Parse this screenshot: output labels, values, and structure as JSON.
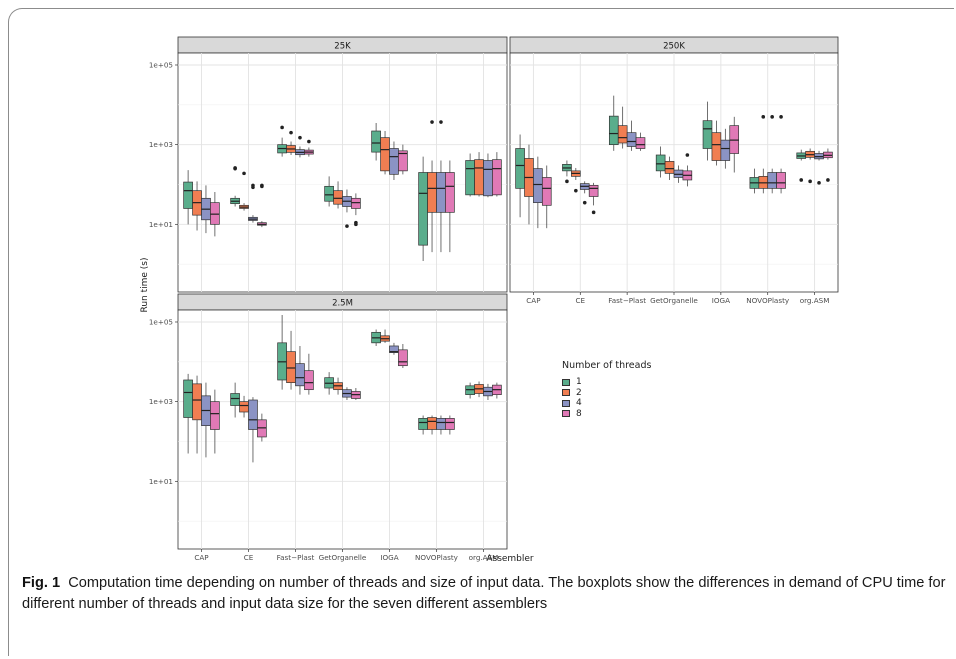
{
  "caption": {
    "label": "Fig. 1",
    "text": "Computation time depending on number of threads and size of input data. The boxplots show the differences in demand of CPU time for different number of threads and input data size for the seven different assemblers"
  },
  "chart_data": {
    "type": "boxplot",
    "xlabel": "Assembler",
    "ylabel": "Run time (s)",
    "yscale": "log10",
    "ylim": [
      0.2,
      200000
    ],
    "yticks": [
      "1e+01",
      "1e+03",
      "1e+05"
    ],
    "ytick_values": [
      10,
      1000,
      100000
    ],
    "grid": true,
    "legend": {
      "title": "Number of threads",
      "placement": "right",
      "entries": [
        "1",
        "2",
        "4",
        "8"
      ],
      "colors": [
        "#5aad8c",
        "#f07e52",
        "#8b93c4",
        "#e079b6"
      ]
    },
    "categories": [
      "CAP",
      "CE",
      "Fast−Plast",
      "GetOrganelle",
      "IOGA",
      "NOVOPlasty",
      "org.ASM"
    ],
    "panels": [
      {
        "title": "25K",
        "groups": {
          "CAP": [
            {
              "min": 10,
              "q1": 25,
              "median": 70,
              "q3": 115,
              "max": 230
            },
            {
              "min": 7,
              "q1": 17,
              "median": 35,
              "q3": 70,
              "max": 120
            },
            {
              "min": 6,
              "q1": 13,
              "median": 24,
              "q3": 45,
              "max": 95
            },
            {
              "min": 5,
              "q1": 10,
              "median": 18,
              "q3": 35,
              "max": 65
            }
          ],
          "CE": [
            {
              "min": 28,
              "q1": 33,
              "median": 38,
              "q3": 45,
              "max": 52,
              "outliers": [
                260,
                250
              ]
            },
            {
              "min": 22,
              "q1": 25,
              "median": 27,
              "q3": 30,
              "max": 34,
              "outliers": [
                190
              ]
            },
            {
              "min": 11,
              "q1": 12.5,
              "median": 13.5,
              "q3": 15,
              "max": 17,
              "outliers": [
                95,
                85
              ]
            },
            {
              "min": 8.5,
              "q1": 9.5,
              "median": 10,
              "q3": 11,
              "max": 12,
              "outliers": [
                95,
                90
              ]
            }
          ],
          "Fast−Plast": [
            {
              "min": 500,
              "q1": 620,
              "median": 800,
              "q3": 1000,
              "max": 1500,
              "outliers": [
                2700
              ]
            },
            {
              "min": 550,
              "q1": 640,
              "median": 780,
              "q3": 950,
              "max": 1200,
              "outliers": [
                2000
              ]
            },
            {
              "min": 480,
              "q1": 560,
              "median": 640,
              "q3": 750,
              "max": 900,
              "outliers": [
                1500
              ]
            },
            {
              "min": 500,
              "q1": 580,
              "median": 650,
              "q3": 730,
              "max": 850,
              "outliers": [
                1200
              ]
            }
          ],
          "GetOrganelle": [
            {
              "min": 28,
              "q1": 38,
              "median": 55,
              "q3": 90,
              "max": 160
            },
            {
              "min": 25,
              "q1": 32,
              "median": 45,
              "q3": 70,
              "max": 120
            },
            {
              "min": 20,
              "q1": 28,
              "median": 38,
              "q3": 50,
              "max": 75,
              "outliers": [
                9
              ]
            },
            {
              "min": 17,
              "q1": 25,
              "median": 35,
              "q3": 45,
              "max": 60,
              "outliers": [
                11,
                10
              ]
            }
          ],
          "IOGA": [
            {
              "min": 400,
              "q1": 650,
              "median": 1100,
              "q3": 2200,
              "max": 3500
            },
            {
              "min": 180,
              "q1": 220,
              "median": 750,
              "q3": 1500,
              "max": 2200
            },
            {
              "min": 130,
              "q1": 180,
              "median": 500,
              "q3": 800,
              "max": 1200
            },
            {
              "min": 180,
              "q1": 220,
              "median": 600,
              "q3": 700,
              "max": 1000
            }
          ],
          "NOVOPlasty": [
            {
              "min": 1.2,
              "q1": 3,
              "median": 60,
              "q3": 200,
              "max": 500
            },
            {
              "min": 2,
              "q1": 20,
              "median": 80,
              "q3": 200,
              "max": 400,
              "outliers": [
                3700
              ]
            },
            {
              "min": 2,
              "q1": 20,
              "median": 80,
              "q3": 200,
              "max": 400,
              "outliers": [
                3700
              ]
            },
            {
              "min": 2,
              "q1": 20,
              "median": 90,
              "q3": 200,
              "max": 400
            }
          ],
          "org.ASM": [
            {
              "min": 50,
              "q1": 55,
              "median": 250,
              "q3": 400,
              "max": 600
            },
            {
              "min": 50,
              "q1": 55,
              "median": 260,
              "q3": 420,
              "max": 650
            },
            {
              "min": 48,
              "q1": 52,
              "median": 240,
              "q3": 400,
              "max": 600
            },
            {
              "min": 50,
              "q1": 55,
              "median": 250,
              "q3": 420,
              "max": 650
            }
          ]
        }
      },
      {
        "title": "250K",
        "groups": {
          "CAP": [
            {
              "min": 15,
              "q1": 80,
              "median": 300,
              "q3": 800,
              "max": 1800
            },
            {
              "min": 10,
              "q1": 50,
              "median": 150,
              "q3": 450,
              "max": 1000
            },
            {
              "min": 8,
              "q1": 35,
              "median": 100,
              "q3": 250,
              "max": 500
            },
            {
              "min": 8,
              "q1": 30,
              "median": 80,
              "q3": 150,
              "max": 300
            }
          ],
          "CE": [
            {
              "min": 160,
              "q1": 220,
              "median": 260,
              "q3": 320,
              "max": 400,
              "outliers": [
                120
              ]
            },
            {
              "min": 130,
              "q1": 160,
              "median": 190,
              "q3": 220,
              "max": 260,
              "outliers": [
                70
              ]
            },
            {
              "min": 60,
              "q1": 75,
              "median": 90,
              "q3": 105,
              "max": 120,
              "outliers": [
                35
              ]
            },
            {
              "min": 30,
              "q1": 50,
              "median": 80,
              "q3": 95,
              "max": 110,
              "outliers": [
                20
              ]
            }
          ],
          "Fast−Plast": [
            {
              "min": 700,
              "q1": 1000,
              "median": 1900,
              "q3": 5200,
              "max": 17000
            },
            {
              "min": 800,
              "q1": 1100,
              "median": 1500,
              "q3": 3000,
              "max": 9000
            },
            {
              "min": 700,
              "q1": 900,
              "median": 1200,
              "q3": 2000,
              "max": 4000
            },
            {
              "min": 700,
              "q1": 800,
              "median": 1000,
              "q3": 1500,
              "max": 2000
            }
          ],
          "GetOrganelle": [
            {
              "min": 150,
              "q1": 220,
              "median": 330,
              "q3": 550,
              "max": 900
            },
            {
              "min": 130,
              "q1": 190,
              "median": 250,
              "q3": 380,
              "max": 500
            },
            {
              "min": 110,
              "q1": 150,
              "median": 180,
              "q3": 230,
              "max": 300
            },
            {
              "min": 90,
              "q1": 130,
              "median": 170,
              "q3": 220,
              "max": 300,
              "outliers": [
                550
              ]
            }
          ],
          "IOGA": [
            {
              "min": 400,
              "q1": 800,
              "median": 2500,
              "q3": 4000,
              "max": 12000
            },
            {
              "min": 300,
              "q1": 400,
              "median": 1000,
              "q3": 2000,
              "max": 4000
            },
            {
              "min": 250,
              "q1": 400,
              "median": 800,
              "q3": 1300,
              "max": 2500
            },
            {
              "min": 200,
              "q1": 600,
              "median": 1300,
              "q3": 3000,
              "max": 5000
            }
          ],
          "NOVOPlasty": [
            {
              "min": 60,
              "q1": 80,
              "median": 110,
              "q3": 150,
              "max": 250
            },
            {
              "min": 60,
              "q1": 80,
              "median": 110,
              "q3": 160,
              "max": 250,
              "outliers": [
                5000
              ]
            },
            {
              "min": 60,
              "q1": 80,
              "median": 110,
              "q3": 200,
              "max": 250,
              "outliers": [
                5000
              ]
            },
            {
              "min": 60,
              "q1": 80,
              "median": 110,
              "q3": 200,
              "max": 250,
              "outliers": [
                5000
              ]
            }
          ],
          "org.ASM": [
            {
              "min": 400,
              "q1": 450,
              "median": 520,
              "q3": 620,
              "max": 750,
              "outliers": [
                130
              ]
            },
            {
              "min": 420,
              "q1": 480,
              "median": 560,
              "q3": 680,
              "max": 800,
              "outliers": [
                120
              ]
            },
            {
              "min": 400,
              "q1": 440,
              "median": 500,
              "q3": 600,
              "max": 700,
              "outliers": [
                110
              ]
            },
            {
              "min": 420,
              "q1": 470,
              "median": 540,
              "q3": 650,
              "max": 800,
              "outliers": [
                130
              ]
            }
          ]
        }
      },
      {
        "title": "2.5M",
        "groups": {
          "CAP": [
            {
              "min": 50,
              "q1": 400,
              "median": 1700,
              "q3": 3500,
              "max": 5000
            },
            {
              "min": 50,
              "q1": 350,
              "median": 1100,
              "q3": 2800,
              "max": 4500
            },
            {
              "min": 40,
              "q1": 250,
              "median": 600,
              "q3": 1400,
              "max": 3000
            },
            {
              "min": 50,
              "q1": 200,
              "median": 500,
              "q3": 1000,
              "max": 2000
            }
          ],
          "CE": [
            {
              "min": 400,
              "q1": 800,
              "median": 1200,
              "q3": 1600,
              "max": 3000
            },
            {
              "min": 400,
              "q1": 550,
              "median": 800,
              "q3": 1000,
              "max": 1400
            },
            {
              "min": 30,
              "q1": 200,
              "median": 350,
              "q3": 1100,
              "max": 1300
            },
            {
              "min": 100,
              "q1": 130,
              "median": 220,
              "q3": 350,
              "max": 500
            }
          ],
          "Fast−Plast": [
            {
              "min": 2000,
              "q1": 3500,
              "median": 10000,
              "q3": 30000,
              "max": 150000
            },
            {
              "min": 2000,
              "q1": 3000,
              "median": 7000,
              "q3": 18000,
              "max": 60000
            },
            {
              "min": 1500,
              "q1": 2500,
              "median": 4000,
              "q3": 9000,
              "max": 25000
            },
            {
              "min": 1500,
              "q1": 2000,
              "median": 3000,
              "q3": 6000,
              "max": 16000
            }
          ],
          "GetOrganelle": [
            {
              "min": 1500,
              "q1": 2200,
              "median": 2900,
              "q3": 4000,
              "max": 5500
            },
            {
              "min": 1500,
              "q1": 2000,
              "median": 2500,
              "q3": 3000,
              "max": 4000
            },
            {
              "min": 1100,
              "q1": 1300,
              "median": 1600,
              "q3": 2000,
              "max": 2300
            },
            {
              "min": 1100,
              "q1": 1200,
              "median": 1500,
              "q3": 1800,
              "max": 2200
            }
          ],
          "IOGA": [
            {
              "min": 25000,
              "q1": 30000,
              "median": 40000,
              "q3": 55000,
              "max": 65000
            },
            {
              "min": 30000,
              "q1": 33000,
              "median": 38000,
              "q3": 45000,
              "max": 65000
            },
            {
              "min": 15000,
              "q1": 17000,
              "median": 18000,
              "q3": 25000,
              "max": 30000
            },
            {
              "min": 7000,
              "q1": 8000,
              "median": 10000,
              "q3": 20000,
              "max": 28000
            }
          ],
          "NOVOPlasty": [
            {
              "min": 150,
              "q1": 200,
              "median": 300,
              "q3": 380,
              "max": 450
            },
            {
              "min": 150,
              "q1": 200,
              "median": 320,
              "q3": 400,
              "max": 450
            },
            {
              "min": 150,
              "q1": 200,
              "median": 300,
              "q3": 380,
              "max": 450
            },
            {
              "min": 150,
              "q1": 200,
              "median": 300,
              "q3": 380,
              "max": 450
            }
          ],
          "org.ASM": [
            {
              "min": 1200,
              "q1": 1500,
              "median": 2000,
              "q3": 2500,
              "max": 3000
            },
            {
              "min": 1300,
              "q1": 1600,
              "median": 2100,
              "q3": 2700,
              "max": 3200
            },
            {
              "min": 1100,
              "q1": 1400,
              "median": 1800,
              "q3": 2300,
              "max": 2800
            },
            {
              "min": 1200,
              "q1": 1500,
              "median": 2000,
              "q3": 2600,
              "max": 3000
            }
          ]
        }
      }
    ]
  }
}
